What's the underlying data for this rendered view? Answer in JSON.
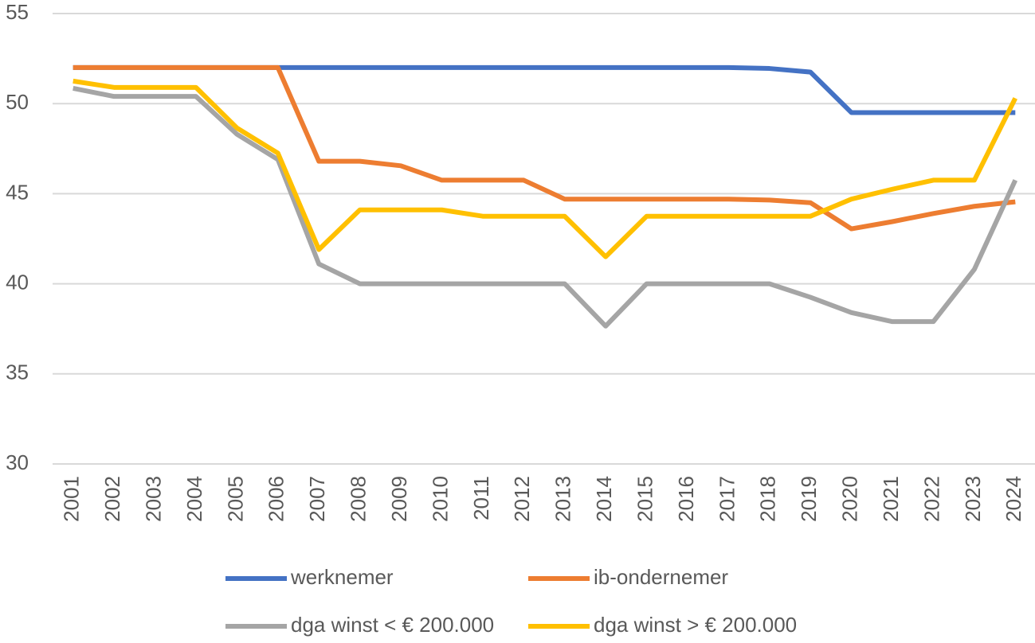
{
  "chart_data": {
    "type": "line",
    "categories": [
      "2001",
      "2002",
      "2003",
      "2004",
      "2005",
      "2006",
      "2007",
      "2008",
      "2009",
      "2010",
      "2011",
      "2012",
      "2013",
      "2014",
      "2015",
      "2016",
      "2017",
      "2018",
      "2019",
      "2020",
      "2021",
      "2022",
      "2023",
      "2024"
    ],
    "series": [
      {
        "name": "werknemer",
        "color": "#4472c4",
        "values": [
          52,
          52,
          52,
          52,
          52,
          52,
          52,
          52,
          52,
          52,
          52,
          52,
          52,
          52,
          52,
          52,
          52,
          51.95,
          51.75,
          49.5,
          49.5,
          49.5,
          49.5,
          49.5
        ]
      },
      {
        "name": "ib-ondernemer",
        "color": "#ed7d31",
        "values": [
          52,
          52,
          52,
          52,
          52,
          52,
          46.8,
          46.8,
          46.55,
          45.75,
          45.75,
          45.75,
          44.7,
          44.7,
          44.7,
          44.7,
          44.7,
          44.65,
          44.5,
          43.05,
          43.45,
          43.9,
          44.3,
          44.55
        ]
      },
      {
        "name": "dga winst < € 200.000",
        "color": "#a5a5a5",
        "values": [
          50.85,
          50.4,
          50.4,
          50.4,
          48.3,
          46.9,
          41.1,
          40,
          40,
          40,
          40,
          40,
          40,
          37.65,
          40,
          40,
          40,
          40,
          39.25,
          38.4,
          37.9,
          37.9,
          40.8,
          45.75
        ]
      },
      {
        "name": "dga winst > € 200.000",
        "color": "#ffc000",
        "values": [
          51.25,
          50.9,
          50.9,
          50.9,
          48.65,
          47.25,
          41.9,
          44.1,
          44.1,
          44.1,
          43.75,
          43.75,
          43.75,
          41.5,
          43.75,
          43.75,
          43.75,
          43.75,
          43.75,
          44.7,
          45.25,
          45.75,
          45.75,
          50.3
        ]
      }
    ],
    "ylim": [
      30,
      55
    ],
    "yticks": [
      30,
      35,
      40,
      45,
      50,
      55
    ],
    "grid": true,
    "legend": "bottom"
  }
}
